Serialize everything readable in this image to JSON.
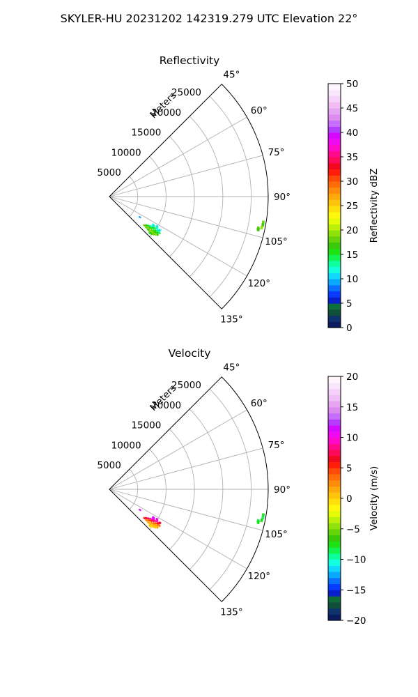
{
  "figure": {
    "suptitle": "SKYLER-HU  20231202  142319.279 UTC Elevation 22°"
  },
  "chart_data": [
    {
      "type": "polar-sector",
      "title": "Reflectivity",
      "range_label": "Meters",
      "range_ticks": [
        5000,
        10000,
        15000,
        20000,
        25000
      ],
      "range_tick_labels": [
        "5000",
        "10000",
        "15000",
        "20000",
        "25000"
      ],
      "rmax": 28000,
      "azimuth_range_deg": [
        45,
        135
      ],
      "azimuth_ticks_deg": [
        45,
        60,
        75,
        90,
        105,
        120,
        135
      ],
      "azimuth_tick_labels": [
        "45°",
        "60°",
        "75°",
        "90°",
        "105°",
        "120°",
        "135°"
      ],
      "grid": true,
      "colorbar": {
        "label": "Reflectivity dBZ",
        "min": 0,
        "max": 50,
        "ticks": [
          0,
          5,
          10,
          15,
          20,
          25,
          30,
          35,
          40,
          45,
          50
        ],
        "tick_labels": [
          "0",
          "5",
          "10",
          "15",
          "20",
          "25",
          "30",
          "35",
          "40",
          "45",
          "50"
        ],
        "colors": [
          "#0b1b5e",
          "#10306e",
          "#10503a",
          "#0d6e3a",
          "#0a1ecc",
          "#0a3cff",
          "#0a70ff",
          "#0aa8ff",
          "#10d8ff",
          "#14ffe0",
          "#10ff9e",
          "#12f250",
          "#1ee014",
          "#3cc80a",
          "#66d20a",
          "#90e10a",
          "#bcef0a",
          "#e6fb0a",
          "#fff80a",
          "#ffe00a",
          "#ffc50a",
          "#ffaa0a",
          "#ff8c0a",
          "#ff6e0a",
          "#ff4b0a",
          "#ff1e0a",
          "#f00a1e",
          "#ff0a5a",
          "#ff0a8c",
          "#ff0ac8",
          "#f00af0",
          "#d20aff",
          "#b43cff",
          "#c86eff",
          "#dc8cf0",
          "#e6a5f0",
          "#f0bef5",
          "#f5d2fa",
          "#fae6fc",
          "#fff5ff"
        ]
      },
      "gates": [
        {
          "az": 124.0,
          "r": 6500,
          "value": 9
        },
        {
          "az": 122.5,
          "r": 9200,
          "value": 12
        },
        {
          "az": 123.5,
          "r": 9400,
          "value": 13
        },
        {
          "az": 124.5,
          "r": 9300,
          "value": 11
        },
        {
          "az": 125.5,
          "r": 9000,
          "value": 12
        },
        {
          "az": 126.5,
          "r": 8700,
          "value": 14
        },
        {
          "az": 127.5,
          "r": 8400,
          "value": 15
        },
        {
          "az": 128.5,
          "r": 8200,
          "value": 17
        },
        {
          "az": 129.5,
          "r": 8000,
          "value": 18
        },
        {
          "az": 122.0,
          "r": 9900,
          "value": 11
        },
        {
          "az": 123.0,
          "r": 10000,
          "value": 13
        },
        {
          "az": 124.0,
          "r": 10100,
          "value": 12
        },
        {
          "az": 125.0,
          "r": 9700,
          "value": 14
        },
        {
          "az": 126.0,
          "r": 9500,
          "value": 15
        },
        {
          "az": 127.0,
          "r": 9200,
          "value": 16
        },
        {
          "az": 128.0,
          "r": 8900,
          "value": 17
        },
        {
          "az": 129.0,
          "r": 8700,
          "value": 19
        },
        {
          "az": 130.0,
          "r": 8500,
          "value": 18
        },
        {
          "az": 123.5,
          "r": 10700,
          "value": 12
        },
        {
          "az": 124.5,
          "r": 10600,
          "value": 11
        },
        {
          "az": 125.5,
          "r": 10400,
          "value": 13
        },
        {
          "az": 126.5,
          "r": 10100,
          "value": 15
        },
        {
          "az": 127.5,
          "r": 9900,
          "value": 16
        },
        {
          "az": 128.5,
          "r": 9600,
          "value": 18
        },
        {
          "az": 129.5,
          "r": 9300,
          "value": 19
        },
        {
          "az": 130.5,
          "r": 9000,
          "value": 17
        },
        {
          "az": 126.0,
          "r": 10900,
          "value": 14
        },
        {
          "az": 127.0,
          "r": 10600,
          "value": 16
        },
        {
          "az": 128.0,
          "r": 10300,
          "value": 17
        },
        {
          "az": 129.0,
          "r": 10000,
          "value": 18
        },
        {
          "az": 130.0,
          "r": 9800,
          "value": 19
        },
        {
          "az": 131.0,
          "r": 9500,
          "value": 18
        },
        {
          "az": 128.5,
          "r": 10800,
          "value": 17
        },
        {
          "az": 129.5,
          "r": 10500,
          "value": 19
        },
        {
          "az": 130.5,
          "r": 10200,
          "value": 18
        },
        {
          "az": 131.5,
          "r": 9900,
          "value": 17
        },
        {
          "az": 132.0,
          "r": 9600,
          "value": 16
        },
        {
          "az": 99.5,
          "r": 27500,
          "value": 18
        },
        {
          "az": 100.5,
          "r": 27500,
          "value": 17
        },
        {
          "az": 101.5,
          "r": 27400,
          "value": 19
        },
        {
          "az": 102.0,
          "r": 26800,
          "value": 18
        },
        {
          "az": 102.5,
          "r": 26900,
          "value": 17
        }
      ]
    },
    {
      "type": "polar-sector",
      "title": "Velocity",
      "range_label": "Meters",
      "range_ticks": [
        5000,
        10000,
        15000,
        20000,
        25000
      ],
      "range_tick_labels": [
        "5000",
        "10000",
        "15000",
        "20000",
        "25000"
      ],
      "rmax": 28000,
      "azimuth_range_deg": [
        45,
        135
      ],
      "azimuth_ticks_deg": [
        45,
        60,
        75,
        90,
        105,
        120,
        135
      ],
      "azimuth_tick_labels": [
        "45°",
        "60°",
        "75°",
        "90°",
        "105°",
        "120°",
        "135°"
      ],
      "grid": true,
      "colorbar": {
        "label": "Velocity (m/s)",
        "min": -20,
        "max": 20,
        "ticks": [
          -20,
          -15,
          -10,
          -5,
          0,
          5,
          10,
          15,
          20
        ],
        "tick_labels": [
          "−20",
          "−15",
          "−10",
          "−5",
          "0",
          "5",
          "10",
          "15",
          "20"
        ],
        "colors": [
          "#0b1b5e",
          "#10306e",
          "#10503a",
          "#0d6e3a",
          "#0a1ecc",
          "#0a3cff",
          "#0a70ff",
          "#0aa8ff",
          "#10d8ff",
          "#14ffe0",
          "#10ff9e",
          "#12f250",
          "#1ee014",
          "#3cc80a",
          "#66d20a",
          "#90e10a",
          "#bcef0a",
          "#e6fb0a",
          "#fff80a",
          "#ffe00a",
          "#ffc50a",
          "#ffaa0a",
          "#ff8c0a",
          "#ff6e0a",
          "#ff4b0a",
          "#ff1e0a",
          "#f00a1e",
          "#ff0a5a",
          "#ff0a8c",
          "#ff0ac8",
          "#f00af0",
          "#d20aff",
          "#b43cff",
          "#c86eff",
          "#dc8cf0",
          "#e6a5f0",
          "#f0bef5",
          "#f5d2fa",
          "#fae6fc",
          "#fff5ff"
        ]
      },
      "gates": [
        {
          "az": 124.0,
          "r": 6500,
          "value": 11
        },
        {
          "az": 122.5,
          "r": 9200,
          "value": 11
        },
        {
          "az": 123.5,
          "r": 9400,
          "value": 10
        },
        {
          "az": 124.5,
          "r": 9300,
          "value": 11
        },
        {
          "az": 125.5,
          "r": 9000,
          "value": 9
        },
        {
          "az": 126.5,
          "r": 8700,
          "value": 8
        },
        {
          "az": 127.5,
          "r": 8400,
          "value": 7
        },
        {
          "az": 128.5,
          "r": 8200,
          "value": 6
        },
        {
          "az": 129.5,
          "r": 8000,
          "value": 5
        },
        {
          "az": 122.0,
          "r": 9900,
          "value": 10
        },
        {
          "az": 123.0,
          "r": 10000,
          "value": 9
        },
        {
          "az": 124.0,
          "r": 10100,
          "value": 9
        },
        {
          "az": 125.0,
          "r": 9700,
          "value": 8
        },
        {
          "az": 126.0,
          "r": 9500,
          "value": 7
        },
        {
          "az": 127.0,
          "r": 9200,
          "value": 5
        },
        {
          "az": 128.0,
          "r": 8900,
          "value": 4
        },
        {
          "az": 129.0,
          "r": 8700,
          "value": 3
        },
        {
          "az": 130.0,
          "r": 8500,
          "value": 2
        },
        {
          "az": 123.5,
          "r": 10700,
          "value": 7
        },
        {
          "az": 124.5,
          "r": 10600,
          "value": 6
        },
        {
          "az": 125.5,
          "r": 10400,
          "value": 5
        },
        {
          "az": 126.5,
          "r": 10100,
          "value": 4
        },
        {
          "az": 127.5,
          "r": 9900,
          "value": 3
        },
        {
          "az": 128.5,
          "r": 9600,
          "value": 2
        },
        {
          "az": 129.5,
          "r": 9300,
          "value": 1
        },
        {
          "az": 130.5,
          "r": 9000,
          "value": 1
        },
        {
          "az": 126.0,
          "r": 10900,
          "value": 3
        },
        {
          "az": 127.0,
          "r": 10600,
          "value": 2
        },
        {
          "az": 128.0,
          "r": 10300,
          "value": 1
        },
        {
          "az": 129.0,
          "r": 10000,
          "value": 1
        },
        {
          "az": 130.0,
          "r": 9800,
          "value": 0
        },
        {
          "az": 131.0,
          "r": 9500,
          "value": 0
        },
        {
          "az": 128.5,
          "r": 10800,
          "value": 1
        },
        {
          "az": 129.5,
          "r": 10500,
          "value": 0
        },
        {
          "az": 130.5,
          "r": 10200,
          "value": 0
        },
        {
          "az": 131.5,
          "r": 9900,
          "value": -1
        },
        {
          "az": 132.0,
          "r": 9600,
          "value": 0
        },
        {
          "az": 99.5,
          "r": 27500,
          "value": -8
        },
        {
          "az": 100.5,
          "r": 27500,
          "value": -9
        },
        {
          "az": 101.5,
          "r": 27400,
          "value": -8
        },
        {
          "az": 102.0,
          "r": 26800,
          "value": -9
        },
        {
          "az": 102.5,
          "r": 26900,
          "value": -8
        }
      ]
    }
  ]
}
